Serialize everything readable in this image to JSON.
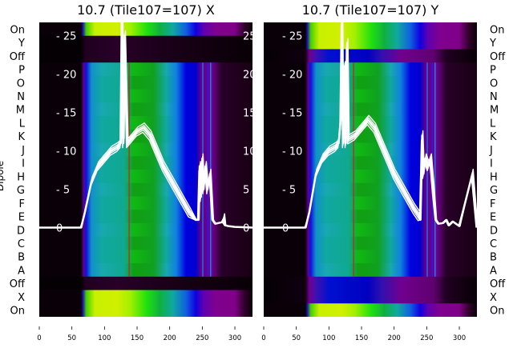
{
  "chart_data": [
    {
      "type": "heatmap",
      "title": "10.7 (Tile107=107) X",
      "ylabel": "Dipole",
      "row_labels": [
        "On",
        "Y",
        "Off",
        "P",
        "O",
        "N",
        "M",
        "L",
        "K",
        "J",
        "I",
        "H",
        "G",
        "F",
        "E",
        "D",
        "C",
        "B",
        "A",
        "Off",
        "X",
        "On"
      ],
      "x_ticks": [
        0,
        50,
        100,
        150,
        200,
        250,
        300
      ],
      "xlim": [
        0,
        327
      ],
      "overlay_y_ticks": [
        0,
        5,
        10,
        15,
        20,
        25
      ],
      "overlay_ylim": [
        -11.6,
        26.7
      ],
      "series": [
        {
          "name": "overlay-line",
          "x": [
            0,
            64,
            70,
            80,
            90,
            100,
            110,
            120,
            125,
            127,
            129,
            131,
            135,
            140,
            150,
            160,
            170,
            180,
            190,
            200,
            210,
            220,
            230,
            240,
            244,
            246,
            248,
            250,
            252,
            255,
            258,
            262,
            266,
            270,
            280,
            283,
            285,
            290,
            300,
            327
          ],
          "y": [
            0,
            0,
            2,
            6,
            8,
            9,
            10,
            10.5,
            11,
            28,
            11,
            25,
            11,
            11.5,
            12.5,
            13,
            12,
            10,
            8,
            6.5,
            5,
            3.5,
            2,
            1,
            1,
            8,
            4,
            9,
            5,
            8,
            5,
            7,
            1,
            0.5,
            0.7,
            1.2,
            0.3,
            0.2,
            0.1,
            0
          ]
        }
      ]
    },
    {
      "type": "heatmap",
      "title": "10.7 (Tile107=107) Y",
      "row_labels": [
        "On",
        "Y",
        "Off",
        "P",
        "O",
        "N",
        "M",
        "L",
        "K",
        "J",
        "I",
        "H",
        "G",
        "F",
        "E",
        "D",
        "C",
        "B",
        "A",
        "Off",
        "X",
        "On"
      ],
      "x_ticks": [
        0,
        50,
        100,
        150,
        200,
        250,
        300
      ],
      "xlim": [
        0,
        327
      ],
      "overlay_y_ticks": [
        0,
        5,
        10,
        15,
        20,
        25
      ],
      "overlay_ylim": [
        -11.6,
        26.7
      ],
      "series": [
        {
          "name": "overlay-line",
          "x": [
            0,
            64,
            70,
            80,
            90,
            100,
            110,
            115,
            118,
            120,
            122,
            124,
            126,
            128,
            130,
            140,
            150,
            160,
            170,
            180,
            190,
            200,
            210,
            220,
            230,
            238,
            240,
            243,
            245,
            248,
            252,
            256,
            260,
            264,
            268,
            275,
            280,
            284,
            290,
            300,
            320,
            327
          ],
          "y": [
            0,
            0,
            2,
            7,
            9,
            10,
            10.5,
            11,
            14,
            27,
            11,
            21,
            11,
            24,
            11.5,
            12,
            13,
            14,
            13,
            11,
            9,
            7,
            5.5,
            4,
            2.5,
            1.5,
            1,
            12,
            7,
            9,
            8,
            9,
            5,
            1,
            0.5,
            0.6,
            1,
            0.3,
            0.8,
            0.2,
            7,
            0
          ]
        }
      ]
    }
  ]
}
